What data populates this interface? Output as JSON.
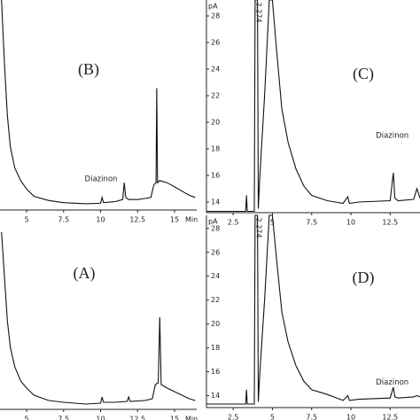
{
  "chart_data": [
    {
      "type": "line",
      "label": "(B)",
      "annotation": "Diazinon",
      "x_label": "Min",
      "x": [
        3.3,
        3.5,
        3.7,
        3.9,
        4.2,
        4.6,
        5,
        5.5,
        6.5,
        7.5,
        9,
        10,
        10.1,
        10.2,
        11,
        11.5,
        11.6,
        11.7,
        11.9,
        12.5,
        13,
        13.4,
        13.6,
        13.75,
        13.8,
        13.85,
        14,
        14.5,
        15,
        15.5,
        16,
        16.4
      ],
      "values": [
        100,
        70,
        45,
        30,
        20,
        14,
        10,
        6.5,
        4.5,
        3.5,
        3,
        3.2,
        6,
        3.5,
        4,
        5,
        13,
        6,
        5,
        5,
        5.5,
        6,
        12,
        13,
        58,
        13,
        14,
        13,
        11,
        9,
        7,
        6
      ],
      "xlim": [
        3.2,
        16.5
      ],
      "ylim": [
        0,
        100
      ],
      "xticks": [
        5,
        7.5,
        10,
        12.5,
        15
      ],
      "color": "#111"
    },
    {
      "type": "line",
      "label": "(C)",
      "annotation": "Diazinon",
      "y_label": "pA",
      "peak_label": "2.274",
      "x": [
        0.8,
        3.3,
        3.35,
        3.4,
        3.85,
        3.9,
        4.05,
        4.1,
        4.2,
        4.5,
        4.8,
        5.0,
        5.3,
        5.6,
        6.0,
        6.5,
        7.0,
        7.5,
        8.5,
        9.5,
        9.8,
        9.9,
        10.5,
        12.5,
        12.7,
        12.8,
        13,
        14,
        14.2,
        14.4
      ],
      "values": [
        13.3,
        13.3,
        14.5,
        13.3,
        13.3,
        29.2,
        29.2,
        13.5,
        16,
        22,
        29.2,
        29.2,
        25,
        21,
        18.5,
        16.5,
        15.2,
        14.5,
        14.1,
        13.9,
        14.4,
        13.9,
        14,
        14.1,
        16.2,
        14.3,
        14.1,
        14.2,
        15,
        14.3
      ],
      "xlim": [
        0.8,
        14.4
      ],
      "ylim": [
        13.2,
        29.2
      ],
      "xticks": [
        2.5,
        5,
        7.5,
        10,
        12.5
      ],
      "yticks": [
        14,
        16,
        18,
        20,
        22,
        24,
        26,
        28
      ],
      "color": "#111"
    },
    {
      "type": "line",
      "label": "(A)",
      "x_label": "Min",
      "x": [
        3.3,
        3.5,
        3.7,
        3.9,
        4.2,
        4.6,
        5,
        5.5,
        6.5,
        7.5,
        9,
        10,
        10.1,
        10.2,
        11,
        11.8,
        11.9,
        12,
        13,
        13.5,
        13.7,
        13.9,
        14.0,
        14.1,
        14.5,
        15,
        15.5,
        16,
        16.4
      ],
      "values": [
        100,
        75,
        50,
        35,
        24,
        16,
        12,
        8,
        5,
        4,
        3,
        3.5,
        7,
        4,
        4,
        4.5,
        7,
        4.5,
        5,
        6,
        14,
        15,
        52,
        14,
        12,
        10,
        8,
        6,
        5
      ],
      "xlim": [
        3.2,
        16.5
      ],
      "ylim": [
        0,
        100
      ],
      "xticks": [
        5,
        7.5,
        10,
        12.5,
        15
      ],
      "color": "#111"
    },
    {
      "type": "line",
      "label": "(D)",
      "annotation": "Diazinon",
      "y_label": "pA",
      "peak_label": "2.274",
      "x": [
        0.8,
        3.3,
        3.35,
        3.4,
        3.85,
        3.9,
        4.05,
        4.1,
        4.2,
        4.5,
        4.8,
        5.0,
        5.3,
        5.6,
        6.0,
        6.5,
        7.0,
        7.5,
        8.5,
        9.5,
        9.8,
        9.9,
        10.5,
        12.5,
        12.7,
        12.8,
        13,
        14,
        14.2,
        14.4
      ],
      "values": [
        13.3,
        13.3,
        14.5,
        13.3,
        13.3,
        29.1,
        29.1,
        13.5,
        16,
        22,
        29.1,
        29.1,
        25,
        21,
        18.5,
        16.5,
        15.2,
        14.5,
        14.1,
        13.6,
        14.0,
        13.6,
        13.7,
        13.8,
        14.7,
        13.9,
        13.8,
        13.9,
        14.0,
        13.9
      ],
      "xlim": [
        0.8,
        14.4
      ],
      "ylim": [
        13,
        29.1
      ],
      "xticks": [
        2.5,
        5,
        7.5,
        10,
        12.5
      ],
      "yticks": [
        14,
        16,
        18,
        20,
        22,
        24,
        26,
        28
      ],
      "color": "#111"
    }
  ]
}
